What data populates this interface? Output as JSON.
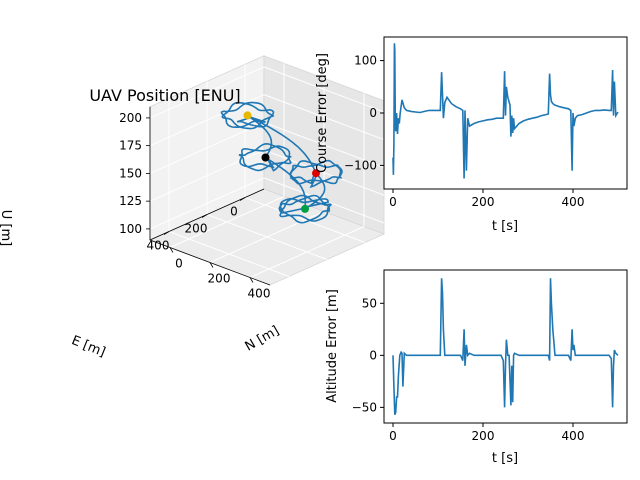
{
  "colors": {
    "line": "#1f77b4",
    "pane_left": "#f2f2f2",
    "pane_right": "#e6e6e6",
    "pane_floor": "#ececec",
    "grid": "#ffffff",
    "markers": [
      "#e6b800",
      "#dd0000",
      "#000000",
      "#00a040"
    ]
  },
  "chart_data": [
    {
      "type": "line3d",
      "title": "UAV Position [ENU]",
      "xlabel": "N [m]",
      "ylabel": "E [m]",
      "zlabel": "U [m]",
      "xticks": [
        "0",
        "200",
        "400"
      ],
      "yticks": [
        "400",
        "200",
        "0"
      ],
      "zticks": [
        "100",
        "125",
        "150",
        "175",
        "200"
      ],
      "xlim": [
        -100,
        500
      ],
      "ylim": [
        -100,
        500
      ],
      "zlim": [
        90,
        210
      ],
      "loiters": [
        {
          "n": 150,
          "e": 250,
          "u": 200
        },
        {
          "n": 350,
          "e": 100,
          "u": 150
        },
        {
          "n": 50,
          "e": 50,
          "u": 140
        },
        {
          "n": 200,
          "e": 0,
          "u": 100
        }
      ],
      "markers": [
        {
          "n": 150,
          "e": 250,
          "u": 200
        },
        {
          "n": 350,
          "e": 100,
          "u": 150
        },
        {
          "n": 50,
          "e": 50,
          "u": 140
        },
        {
          "n": 200,
          "e": 0,
          "u": 100
        }
      ]
    },
    {
      "type": "line",
      "xlabel": "t [s]",
      "ylabel": "Course Error [deg]",
      "xticks": [
        "0",
        "200",
        "400"
      ],
      "yticks": [
        "100",
        "0",
        "−100"
      ],
      "xlim": [
        -20,
        520
      ],
      "ylim": [
        -145,
        145
      ],
      "x": [
        0,
        1,
        2,
        3,
        4,
        5,
        6,
        8,
        10,
        12,
        14,
        16,
        20,
        25,
        30,
        40,
        50,
        60,
        70,
        80,
        90,
        100,
        105,
        108,
        110,
        112,
        115,
        120,
        130,
        140,
        150,
        155,
        158,
        160,
        163,
        166,
        170,
        180,
        190,
        200,
        210,
        220,
        230,
        240,
        245,
        248,
        250,
        252,
        255,
        260,
        262,
        264,
        266,
        268,
        270,
        280,
        290,
        300,
        310,
        320,
        330,
        340,
        345,
        348,
        350,
        352,
        355,
        360,
        370,
        380,
        390,
        395,
        398,
        400,
        402,
        405,
        410,
        420,
        430,
        440,
        450,
        460,
        470,
        480,
        485,
        488,
        490,
        492,
        495,
        500
      ],
      "values": [
        -85,
        -118,
        -60,
        133,
        120,
        -20,
        -35,
        0,
        -40,
        -10,
        -20,
        0,
        25,
        10,
        5,
        3,
        2,
        1,
        3,
        5,
        5,
        5,
        5,
        78,
        35,
        -10,
        20,
        30,
        18,
        12,
        8,
        5,
        -125,
        5,
        -110,
        -10,
        -25,
        -20,
        -17,
        -15,
        -13,
        -12,
        -10,
        -10,
        -10,
        80,
        -5,
        50,
        30,
        15,
        -45,
        -5,
        -38,
        -10,
        -30,
        -20,
        -15,
        -12,
        -10,
        -8,
        -5,
        -3,
        -2,
        75,
        35,
        22,
        18,
        15,
        12,
        10,
        8,
        5,
        -110,
        0,
        -25,
        -10,
        -5,
        -3,
        0,
        3,
        5,
        5,
        6,
        5,
        5,
        82,
        -5,
        60,
        -5,
        2
      ]
    },
    {
      "type": "line",
      "xlabel": "t [s]",
      "ylabel": "Altitude Error [m]",
      "xticks": [
        "0",
        "200",
        "400"
      ],
      "yticks": [
        "50",
        "0",
        "−50"
      ],
      "xlim": [
        -20,
        520
      ],
      "ylim": [
        -65,
        82
      ],
      "x": [
        0,
        2,
        4,
        6,
        8,
        10,
        12,
        15,
        18,
        20,
        22,
        25,
        30,
        40,
        50,
        60,
        70,
        80,
        90,
        100,
        105,
        108,
        110,
        112,
        115,
        120,
        130,
        140,
        150,
        155,
        158,
        160,
        163,
        166,
        170,
        180,
        190,
        200,
        210,
        220,
        230,
        240,
        245,
        248,
        250,
        252,
        255,
        258,
        262,
        264,
        266,
        268,
        270,
        280,
        290,
        300,
        310,
        320,
        330,
        340,
        345,
        348,
        350,
        352,
        355,
        360,
        370,
        380,
        390,
        395,
        398,
        400,
        402,
        405,
        410,
        420,
        430,
        440,
        450,
        460,
        470,
        480,
        485,
        488,
        490,
        492,
        495,
        500
      ],
      "values": [
        0,
        -30,
        -57,
        -55,
        -40,
        -40,
        -20,
        0,
        3,
        2,
        -30,
        2,
        0,
        0,
        0,
        0,
        0,
        0,
        0,
        0,
        0,
        74,
        60,
        25,
        0,
        0,
        0,
        0,
        0,
        -5,
        25,
        -10,
        10,
        0,
        2,
        0,
        0,
        0,
        0,
        0,
        0,
        0,
        -5,
        -50,
        -10,
        15,
        0,
        0,
        -48,
        -10,
        -45,
        0,
        2,
        0,
        0,
        0,
        0,
        0,
        0,
        0,
        0,
        -5,
        74,
        50,
        25,
        0,
        0,
        0,
        0,
        -5,
        25,
        5,
        10,
        0,
        0,
        0,
        0,
        0,
        0,
        0,
        0,
        0,
        -3,
        -50,
        -10,
        5,
        2,
        0
      ]
    }
  ]
}
